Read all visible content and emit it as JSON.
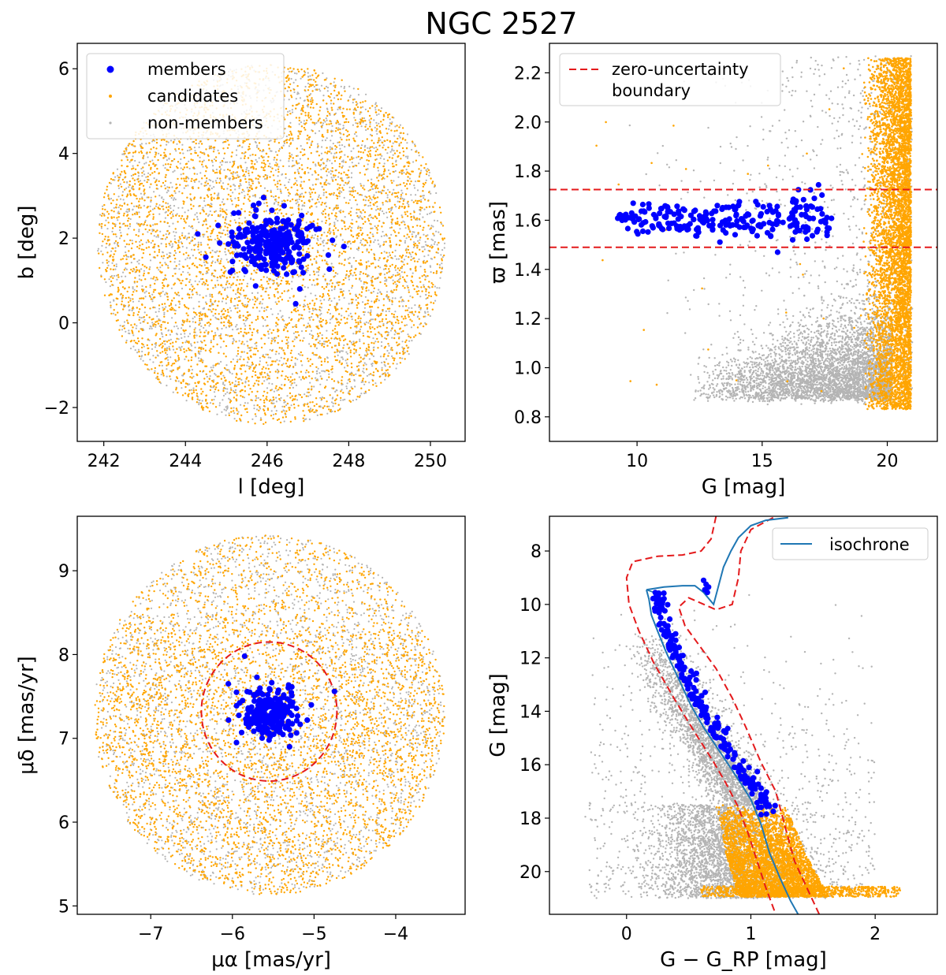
{
  "figure": {
    "title": "NGC 2527"
  },
  "colors": {
    "members": "#0000ff",
    "candidates": "#ffa500",
    "non_members": "#b4b4b4",
    "boundary": "#e41a1c",
    "isochrone": "#1f77b4"
  },
  "chart_data": [
    {
      "id": "sky",
      "type": "scatter",
      "xlabel": "l [deg]",
      "ylabel": "b [deg]",
      "xlim": [
        241.35,
        250.85
      ],
      "ylim": [
        -2.8,
        6.6
      ],
      "xticks": [
        242,
        244,
        246,
        248,
        250
      ],
      "yticks": [
        -2,
        0,
        2,
        4,
        6
      ],
      "legend": {
        "location": "top-left",
        "entries": [
          "members",
          "candidates",
          "non-members"
        ]
      },
      "field": {
        "shape": "circle",
        "center": [
          246.1,
          1.85
        ],
        "radius": 4.25
      },
      "members": {
        "center": [
          246.1,
          1.9
        ],
        "spread": [
          0.45,
          0.35
        ],
        "count": 260,
        "outliers": [
          [
            244.3,
            2.1
          ],
          [
            244.5,
            1.55
          ],
          [
            244.8,
            2.3
          ],
          [
            246.7,
            0.45
          ],
          [
            246.8,
            0.8
          ],
          [
            247.5,
            1.6
          ],
          [
            247.6,
            1.95
          ],
          [
            245.1,
            1.2
          ],
          [
            245.3,
            2.6
          ]
        ]
      }
    },
    {
      "id": "parallax",
      "type": "scatter",
      "xlabel": "G [mag]",
      "ylabel": "ϖ [mas]",
      "xlim": [
        6.5,
        22.0
      ],
      "ylim": [
        0.7,
        2.32
      ],
      "xticks": [
        10,
        15,
        20
      ],
      "yticks": [
        0.8,
        1.0,
        1.2,
        1.4,
        1.6,
        1.8,
        2.0,
        2.2
      ],
      "legend": {
        "location": "top-left",
        "entries": [
          "zero-uncertainty",
          "boundary"
        ]
      },
      "boundary_lines": [
        1.725,
        1.49
      ],
      "members": {
        "g_range": [
          9.2,
          17.8
        ],
        "parallax_center": 1.605,
        "parallax_spread": 0.04,
        "count": 240
      },
      "candidates_g_range": [
        19.0,
        20.95
      ],
      "non_member_parallax_range": [
        0.85,
        2.27
      ]
    },
    {
      "id": "proper_motion",
      "type": "scatter",
      "xlabel": "μα [mas/yr]",
      "ylabel": "μδ [mas/yr]",
      "xlim": [
        -7.9,
        -3.15
      ],
      "ylim": [
        4.9,
        9.65
      ],
      "xticks": [
        -7,
        -6,
        -5,
        -4
      ],
      "yticks": [
        5,
        6,
        7,
        8,
        9
      ],
      "field": {
        "shape": "circle",
        "center": [
          -5.55,
          7.28
        ],
        "radius": 2.15
      },
      "selection_circle": {
        "center": [
          -5.55,
          7.32
        ],
        "radius": 0.83
      },
      "members": {
        "center": [
          -5.53,
          7.3
        ],
        "spread": [
          0.17,
          0.15
        ],
        "count": 230,
        "outliers": [
          [
            -5.85,
            7.98
          ],
          [
            -5.95,
            7.55
          ],
          [
            -4.75,
            7.56
          ],
          [
            -6.05,
            7.65
          ],
          [
            -5.95,
            6.95
          ],
          [
            -5.3,
            6.9
          ]
        ]
      }
    },
    {
      "id": "cmd",
      "type": "scatter",
      "xlabel": "G − G_RP [mag]",
      "ylabel": "G [mag]",
      "xlim": [
        -0.62,
        2.5
      ],
      "ylim": [
        21.6,
        6.7
      ],
      "xticks": [
        0,
        1,
        2
      ],
      "yticks": [
        8,
        10,
        12,
        14,
        16,
        18,
        20
      ],
      "legend": {
        "location": "top-right",
        "entries": [
          "isochrone"
        ]
      },
      "isochrone_ms": [
        [
          0.16,
          9.45
        ],
        [
          0.18,
          9.8
        ],
        [
          0.2,
          10.4
        ],
        [
          0.25,
          11.0
        ],
        [
          0.32,
          11.8
        ],
        [
          0.42,
          12.8
        ],
        [
          0.52,
          13.8
        ],
        [
          0.62,
          14.6
        ],
        [
          0.72,
          15.3
        ],
        [
          0.82,
          16.0
        ],
        [
          0.92,
          16.7
        ],
        [
          1.0,
          17.3
        ],
        [
          1.08,
          18.2
        ],
        [
          1.15,
          19.3
        ],
        [
          1.24,
          20.3
        ],
        [
          1.32,
          21.1
        ],
        [
          1.38,
          21.6
        ]
      ],
      "isochrone_turnoff": [
        [
          0.16,
          9.45
        ],
        [
          0.3,
          9.35
        ],
        [
          0.45,
          9.3
        ],
        [
          0.55,
          9.3
        ],
        [
          0.62,
          9.55
        ],
        [
          0.7,
          10.0
        ],
        [
          0.74,
          9.3
        ],
        [
          0.78,
          8.6
        ],
        [
          0.84,
          8.0
        ],
        [
          0.9,
          7.5
        ],
        [
          1.0,
          7.05
        ],
        [
          1.12,
          6.85
        ],
        [
          1.3,
          6.75
        ]
      ],
      "isochrone_hook": [
        [
          0.16,
          9.45
        ],
        [
          0.22,
          9.55
        ],
        [
          0.28,
          9.6
        ],
        [
          0.3,
          9.5
        ]
      ],
      "boundary_left": [
        [
          0.72,
          6.7
        ],
        [
          0.68,
          7.55
        ],
        [
          0.6,
          8.0
        ],
        [
          0.45,
          8.15
        ],
        [
          0.25,
          8.2
        ],
        [
          0.05,
          8.4
        ],
        [
          0.0,
          9.0
        ],
        [
          0.02,
          10.0
        ],
        [
          0.1,
          11.0
        ],
        [
          0.22,
          12.2
        ],
        [
          0.38,
          13.5
        ],
        [
          0.55,
          14.8
        ],
        [
          0.7,
          15.9
        ],
        [
          0.8,
          16.7
        ],
        [
          0.9,
          17.6
        ],
        [
          0.98,
          18.6
        ],
        [
          1.05,
          19.6
        ],
        [
          1.12,
          20.6
        ],
        [
          1.2,
          21.6
        ]
      ],
      "boundary_right": [
        [
          1.55,
          21.6
        ],
        [
          1.45,
          20.6
        ],
        [
          1.35,
          19.6
        ],
        [
          1.28,
          18.4
        ],
        [
          1.2,
          17.0
        ],
        [
          1.08,
          15.9
        ],
        [
          0.96,
          14.6
        ],
        [
          0.85,
          13.5
        ],
        [
          0.72,
          12.4
        ],
        [
          0.58,
          11.5
        ],
        [
          0.47,
          10.8
        ],
        [
          0.42,
          10.1
        ],
        [
          0.5,
          9.75
        ],
        [
          0.72,
          10.2
        ],
        [
          0.85,
          10.0
        ],
        [
          0.9,
          9.0
        ],
        [
          0.92,
          8.0
        ],
        [
          1.0,
          7.2
        ],
        [
          1.2,
          6.7
        ]
      ],
      "giants": [
        [
          0.62,
          9.1
        ],
        [
          0.64,
          9.25
        ],
        [
          0.66,
          9.35
        ],
        [
          0.63,
          9.45
        ],
        [
          0.65,
          9.55
        ]
      ]
    }
  ]
}
